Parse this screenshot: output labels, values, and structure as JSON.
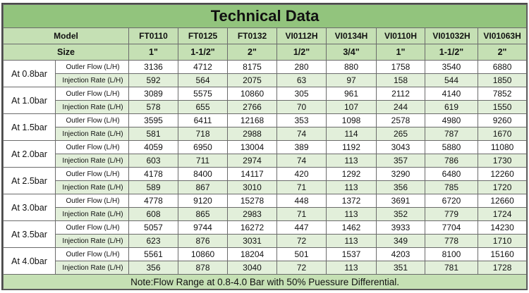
{
  "title": "Technical Data",
  "model_label": "Model",
  "size_label": "Size",
  "models": [
    "FT0110",
    "FT0125",
    "FT0132",
    "VI0112H",
    "VI0134H",
    "VI0110H",
    "VI01032H",
    "VI01063H"
  ],
  "sizes": [
    "1\"",
    "1-1/2\"",
    "2\"",
    "1/2\"",
    "3/4\"",
    "1\"",
    "1-1/2\"",
    "2\""
  ],
  "outlet_label": "Outler Flow (L/H)",
  "injection_label": "Injection Rate (L/H)",
  "pressures": [
    {
      "label": "At 0.8bar",
      "outlet": [
        "3136",
        "4712",
        "8175",
        "280",
        "880",
        "1758",
        "3540",
        "6880"
      ],
      "injection": [
        "592",
        "564",
        "2075",
        "63",
        "97",
        "158",
        "544",
        "1850"
      ]
    },
    {
      "label": "At 1.0bar",
      "outlet": [
        "3089",
        "5575",
        "10860",
        "305",
        "961",
        "2112",
        "4140",
        "7852"
      ],
      "injection": [
        "578",
        "655",
        "2766",
        "70",
        "107",
        "244",
        "619",
        "1550"
      ]
    },
    {
      "label": "At 1.5bar",
      "outlet": [
        "3595",
        "6411",
        "12168",
        "353",
        "1098",
        "2578",
        "4980",
        "9260"
      ],
      "injection": [
        "581",
        "718",
        "2988",
        "74",
        "114",
        "265",
        "787",
        "1670"
      ]
    },
    {
      "label": "At 2.0bar",
      "outlet": [
        "4059",
        "6950",
        "13004",
        "389",
        "1192",
        "3043",
        "5880",
        "11080"
      ],
      "injection": [
        "603",
        "711",
        "2974",
        "74",
        "113",
        "357",
        "786",
        "1730"
      ]
    },
    {
      "label": "At 2.5bar",
      "outlet": [
        "4178",
        "8400",
        "14117",
        "420",
        "1292",
        "3290",
        "6480",
        "12260"
      ],
      "injection": [
        "589",
        "867",
        "3010",
        "71",
        "113",
        "356",
        "785",
        "1720"
      ]
    },
    {
      "label": "At 3.0bar",
      "outlet": [
        "4778",
        "9120",
        "15278",
        "448",
        "1372",
        "3691",
        "6720",
        "12660"
      ],
      "injection": [
        "608",
        "865",
        "2983",
        "71",
        "113",
        "352",
        "779",
        "1724"
      ]
    },
    {
      "label": "At 3.5bar",
      "outlet": [
        "5057",
        "9744",
        "16272",
        "447",
        "1462",
        "3933",
        "7704",
        "14230"
      ],
      "injection": [
        "623",
        "876",
        "3031",
        "72",
        "113",
        "349",
        "778",
        "1710"
      ]
    },
    {
      "label": "At 4.0bar",
      "outlet": [
        "5561",
        "10860",
        "18204",
        "501",
        "1537",
        "4203",
        "8100",
        "15160"
      ],
      "injection": [
        "356",
        "878",
        "3040",
        "72",
        "113",
        "351",
        "781",
        "1728"
      ]
    }
  ],
  "note": "Note:Flow Range at 0.8-4.0 Bar with 50% Puessure Differential.",
  "colors": {
    "title_bg": "#92c47d",
    "header_bg": "#c5e0b4",
    "alt_row_bg": "#e2efda",
    "border": "#6b6b6b"
  }
}
